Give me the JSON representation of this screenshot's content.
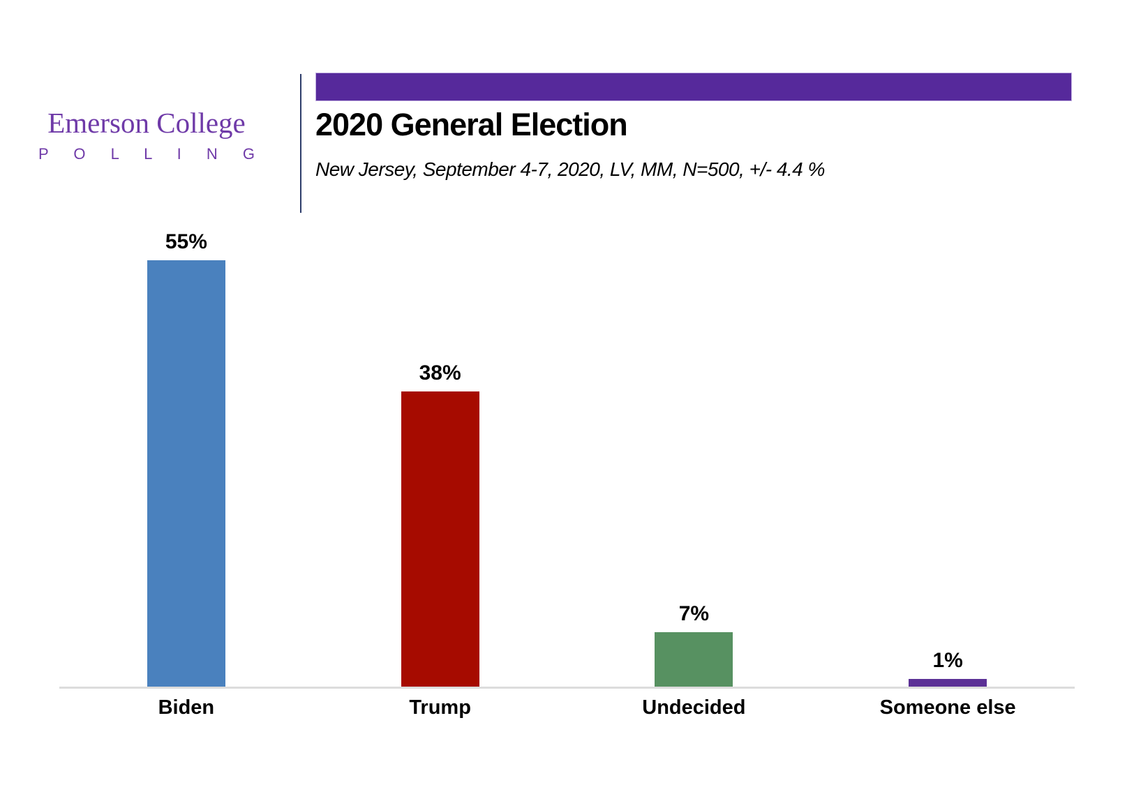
{
  "header": {
    "logo": {
      "line1": "Emerson College",
      "line2": "P O L L I N G",
      "color": "#6F3AA8"
    },
    "banner_color": "#56299B",
    "title": "2020 General Election",
    "subtitle": "New Jersey, September 4-7, 2020, LV, MM,  N=500, +/- 4.4 %"
  },
  "chart_data": {
    "type": "bar",
    "title": "2020 General Election",
    "subtitle": "New Jersey, September 4-7, 2020, LV, MM, N=500, +/- 4.4 %",
    "categories": [
      "Biden",
      "Trump",
      "Undecided",
      "Someone else"
    ],
    "values": [
      55,
      38,
      7,
      1
    ],
    "value_labels": [
      "55%",
      "38%",
      "7%",
      "1%"
    ],
    "bar_colors": [
      "#4A81BE",
      "#A60B00",
      "#579161",
      "#5C3196"
    ],
    "xlabel": "",
    "ylabel": "",
    "ylim": [
      0,
      59
    ],
    "grid": false,
    "legend": false,
    "axis_line_color": "#DCDCDC",
    "data_labels_position": "above-bar"
  }
}
